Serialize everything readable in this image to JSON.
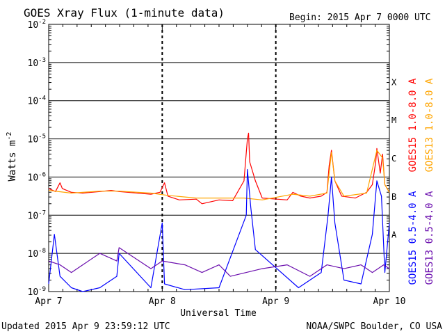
{
  "title": "GOES Xray Flux (1-minute data)",
  "begin": "Begin:  2015 Apr 7 0000 UTC",
  "updated": "Updated 2015 Apr  9 23:59:12 UTC",
  "credit": "NOAA/SWPC Boulder, CO USA",
  "colors": {
    "goes15_long": "#ff0000",
    "goes13_long": "#ffa500",
    "goes15_short": "#0000ff",
    "goes13_short": "#6a0dad"
  },
  "chart_data": {
    "type": "line",
    "title": "GOES Xray Flux (1-minute data)",
    "xlabel": "Universal Time",
    "ylabel": "Watts m",
    "ylabel_sup": "-2",
    "x_ticks": [
      "Apr 7",
      "Apr 8",
      "Apr 9",
      "Apr 10"
    ],
    "xlim_days": [
      0,
      3
    ],
    "y_scale": "log",
    "ylim": [
      1e-09,
      0.01
    ],
    "y_ticks": [
      {
        "base": "10",
        "exp": "-9"
      },
      {
        "base": "10",
        "exp": "-8"
      },
      {
        "base": "10",
        "exp": "-7"
      },
      {
        "base": "10",
        "exp": "-6"
      },
      {
        "base": "10",
        "exp": "-5"
      },
      {
        "base": "10",
        "exp": "-4"
      },
      {
        "base": "10",
        "exp": "-3"
      },
      {
        "base": "10",
        "exp": "-2"
      }
    ],
    "flare_classes": [
      {
        "label": "A",
        "log_value": -7.5
      },
      {
        "label": "B",
        "log_value": -6.5
      },
      {
        "label": "C",
        "log_value": -5.5
      },
      {
        "label": "M",
        "log_value": -4.5
      },
      {
        "label": "X",
        "log_value": -3.5
      }
    ],
    "grid": true,
    "series": [
      {
        "name": "GOES15 1.0-8.0 A",
        "color": "#ff0000",
        "log_values": [
          [
            0.0,
            -6.3
          ],
          [
            0.06,
            -6.38
          ],
          [
            0.1,
            -6.15
          ],
          [
            0.12,
            -6.3
          ],
          [
            0.2,
            -6.4
          ],
          [
            0.3,
            -6.42
          ],
          [
            0.45,
            -6.38
          ],
          [
            0.55,
            -6.35
          ],
          [
            0.62,
            -6.38
          ],
          [
            0.9,
            -6.45
          ],
          [
            0.98,
            -6.4
          ],
          [
            1.02,
            -6.15
          ],
          [
            1.05,
            -6.5
          ],
          [
            1.15,
            -6.6
          ],
          [
            1.3,
            -6.58
          ],
          [
            1.35,
            -6.7
          ],
          [
            1.5,
            -6.6
          ],
          [
            1.62,
            -6.62
          ],
          [
            1.72,
            -6.1
          ],
          [
            1.75,
            -5.0
          ],
          [
            1.76,
            -4.85
          ],
          [
            1.77,
            -5.6
          ],
          [
            1.82,
            -6.1
          ],
          [
            1.88,
            -6.55
          ],
          [
            2.1,
            -6.6
          ],
          [
            2.15,
            -6.4
          ],
          [
            2.22,
            -6.5
          ],
          [
            2.3,
            -6.55
          ],
          [
            2.4,
            -6.5
          ],
          [
            2.45,
            -6.4
          ],
          [
            2.47,
            -5.7
          ],
          [
            2.49,
            -5.3
          ],
          [
            2.52,
            -6.1
          ],
          [
            2.58,
            -6.5
          ],
          [
            2.7,
            -6.55
          ],
          [
            2.8,
            -6.4
          ],
          [
            2.85,
            -6.2
          ],
          [
            2.88,
            -5.6
          ],
          [
            2.89,
            -5.25
          ],
          [
            2.92,
            -5.9
          ],
          [
            2.94,
            -5.4
          ],
          [
            2.96,
            -6.2
          ],
          [
            3.0,
            -6.4
          ]
        ]
      },
      {
        "name": "GOES13 1.0-8.0 A",
        "color": "#ffa500",
        "log_values": [
          [
            0.0,
            -6.35
          ],
          [
            0.2,
            -6.42
          ],
          [
            0.45,
            -6.37
          ],
          [
            0.62,
            -6.37
          ],
          [
            0.9,
            -6.42
          ],
          [
            1.05,
            -6.48
          ],
          [
            1.3,
            -6.55
          ],
          [
            1.6,
            -6.55
          ],
          [
            1.72,
            -6.55
          ],
          [
            1.88,
            -6.6
          ],
          [
            2.15,
            -6.45
          ],
          [
            2.3,
            -6.5
          ],
          [
            2.45,
            -6.42
          ],
          [
            2.49,
            -5.35
          ],
          [
            2.52,
            -6.1
          ],
          [
            2.6,
            -6.5
          ],
          [
            2.8,
            -6.42
          ],
          [
            2.89,
            -5.3
          ],
          [
            2.94,
            -5.5
          ],
          [
            2.96,
            -6.2
          ],
          [
            3.0,
            -6.4
          ]
        ]
      },
      {
        "name": "GOES15 0.5-4.0 A",
        "color": "#0000ff",
        "log_values": [
          [
            0.0,
            -8.8
          ],
          [
            0.05,
            -7.5
          ],
          [
            0.1,
            -8.6
          ],
          [
            0.2,
            -8.9
          ],
          [
            0.3,
            -9.0
          ],
          [
            0.45,
            -8.9
          ],
          [
            0.6,
            -8.6
          ],
          [
            0.62,
            -8.0
          ],
          [
            0.9,
            -8.9
          ],
          [
            1.0,
            -7.2
          ],
          [
            1.02,
            -8.8
          ],
          [
            1.2,
            -8.95
          ],
          [
            1.5,
            -8.9
          ],
          [
            1.74,
            -7.0
          ],
          [
            1.75,
            -5.8
          ],
          [
            1.78,
            -6.8
          ],
          [
            1.82,
            -7.9
          ],
          [
            2.2,
            -8.9
          ],
          [
            2.4,
            -8.5
          ],
          [
            2.46,
            -7.0
          ],
          [
            2.49,
            -6.0
          ],
          [
            2.52,
            -7.2
          ],
          [
            2.6,
            -8.7
          ],
          [
            2.75,
            -8.8
          ],
          [
            2.85,
            -7.5
          ],
          [
            2.89,
            -6.1
          ],
          [
            2.93,
            -6.5
          ],
          [
            2.96,
            -8.5
          ],
          [
            3.0,
            -7.2
          ]
        ]
      },
      {
        "name": "GOES13 0.5-4.0 A",
        "color": "#6a0dad",
        "log_values": [
          [
            0.0,
            -8.2
          ],
          [
            0.1,
            -8.3
          ],
          [
            0.2,
            -8.5
          ],
          [
            0.3,
            -8.3
          ],
          [
            0.45,
            -8.0
          ],
          [
            0.6,
            -8.2
          ],
          [
            0.62,
            -7.85
          ],
          [
            0.9,
            -8.4
          ],
          [
            1.0,
            -8.2
          ],
          [
            1.2,
            -8.3
          ],
          [
            1.35,
            -8.5
          ],
          [
            1.5,
            -8.3
          ],
          [
            1.6,
            -8.6
          ],
          [
            1.88,
            -8.4
          ],
          [
            2.1,
            -8.3
          ],
          [
            2.3,
            -8.6
          ],
          [
            2.45,
            -8.3
          ],
          [
            2.6,
            -8.4
          ],
          [
            2.75,
            -8.3
          ],
          [
            2.85,
            -8.5
          ],
          [
            2.95,
            -8.3
          ],
          [
            3.0,
            -8.4
          ]
        ]
      }
    ]
  }
}
